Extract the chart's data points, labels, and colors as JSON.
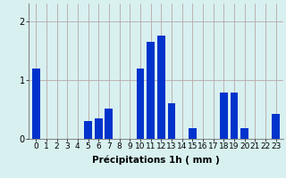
{
  "hours": [
    0,
    1,
    2,
    3,
    4,
    5,
    6,
    7,
    8,
    9,
    10,
    11,
    12,
    13,
    14,
    15,
    16,
    17,
    18,
    19,
    20,
    21,
    22,
    23
  ],
  "values": [
    1.2,
    0,
    0,
    0,
    0,
    0.3,
    0.35,
    0.52,
    0,
    0,
    1.2,
    1.65,
    1.75,
    0.6,
    0,
    0.18,
    0,
    0,
    0.78,
    0.78,
    0.18,
    0,
    0,
    0.42
  ],
  "bar_color": "#0033cc",
  "background_color": "#d8f0f0",
  "grid_color": "#b8a8a8",
  "xlabel": "Précipitations 1h ( mm )",
  "xlabel_fontsize": 7.5,
  "ylabel_ticks": [
    0,
    1,
    2
  ],
  "ylim": [
    0,
    2.3
  ],
  "tick_fontsize": 6.5,
  "bar_width": 0.75
}
